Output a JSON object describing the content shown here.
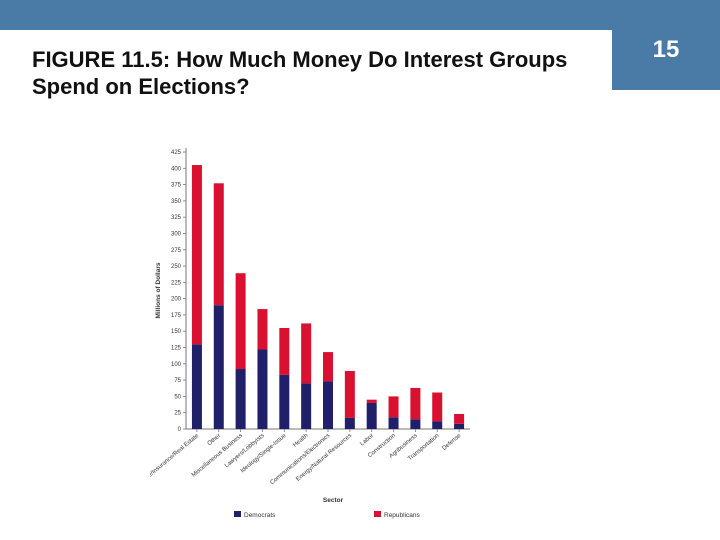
{
  "slide": {
    "title": "FIGURE 11.5: How Much Money Do Interest Groups Spend on Elections?",
    "page_number": "15",
    "bar_color": "#4a7aa6"
  },
  "chart_data": {
    "type": "bar",
    "stacked": true,
    "title": "",
    "xlabel": "Sector",
    "ylabel": "Millions of Dollars",
    "ylim": [
      0,
      425
    ],
    "yticks": [
      0,
      25,
      50,
      75,
      100,
      125,
      150,
      175,
      200,
      225,
      250,
      275,
      300,
      325,
      350,
      375,
      400,
      425
    ],
    "grid": false,
    "legend_position": "bottom",
    "categories": [
      "Finance/Insurance/Real Estate",
      "Other",
      "Miscellaneous Business",
      "Lawyers/Lobbyists",
      "Ideology/Single-Issue",
      "Health",
      "Communications/Electronics",
      "Energy/Natural Resources",
      "Labor",
      "Construction",
      "Agribusiness",
      "Transportation",
      "Defense"
    ],
    "series": [
      {
        "name": "Democrats",
        "color": "#20206a",
        "values": [
          130,
          190,
          92,
          122,
          83,
          70,
          73,
          17,
          40,
          18,
          15,
          12,
          8
        ]
      },
      {
        "name": "Republicans",
        "color": "#d9102f",
        "values": [
          275,
          187,
          147,
          62,
          72,
          92,
          45,
          72,
          5,
          32,
          48,
          44,
          15
        ]
      }
    ]
  }
}
